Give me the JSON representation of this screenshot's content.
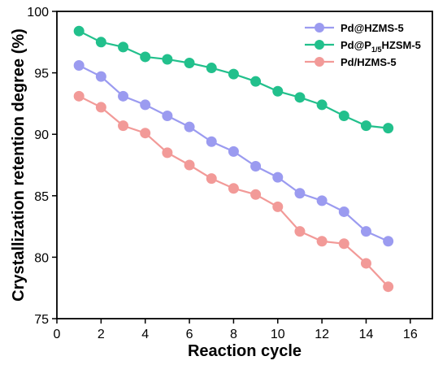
{
  "chart_data": {
    "type": "line",
    "title": "",
    "xlabel": "Reaction cycle",
    "ylabel": "Crystallization retention degree (%)",
    "xlim": [
      0,
      17
    ],
    "ylim": [
      75,
      100
    ],
    "xticks": [
      0,
      2,
      4,
      6,
      8,
      10,
      12,
      14,
      16
    ],
    "yticks": [
      75,
      80,
      85,
      90,
      95,
      100
    ],
    "grid": false,
    "legend_position": "top-right",
    "x": [
      1,
      2,
      3,
      4,
      5,
      6,
      7,
      8,
      9,
      10,
      11,
      12,
      13,
      14,
      15
    ],
    "series": [
      {
        "name": "Pd@HZMS-5",
        "color": "#9b9bf0",
        "values": [
          95.6,
          94.7,
          93.1,
          92.4,
          91.5,
          90.6,
          89.4,
          88.6,
          87.4,
          86.5,
          85.2,
          84.6,
          83.7,
          82.1,
          81.3
        ]
      },
      {
        "name": "Pd@P1/5HZSM-5",
        "name_parts": [
          "Pd@P",
          "1/5",
          "HZSM-5"
        ],
        "color": "#22c08c",
        "values": [
          98.4,
          97.5,
          97.1,
          96.3,
          96.1,
          95.8,
          95.4,
          94.9,
          94.3,
          93.5,
          93.0,
          92.4,
          91.5,
          90.7,
          90.5
        ]
      },
      {
        "name": "Pd/HZMS-5",
        "color": "#f29a98",
        "values": [
          93.1,
          92.2,
          90.7,
          90.1,
          88.5,
          87.5,
          86.4,
          85.6,
          85.1,
          84.1,
          82.1,
          81.3,
          81.1,
          79.5,
          77.6
        ]
      }
    ]
  }
}
